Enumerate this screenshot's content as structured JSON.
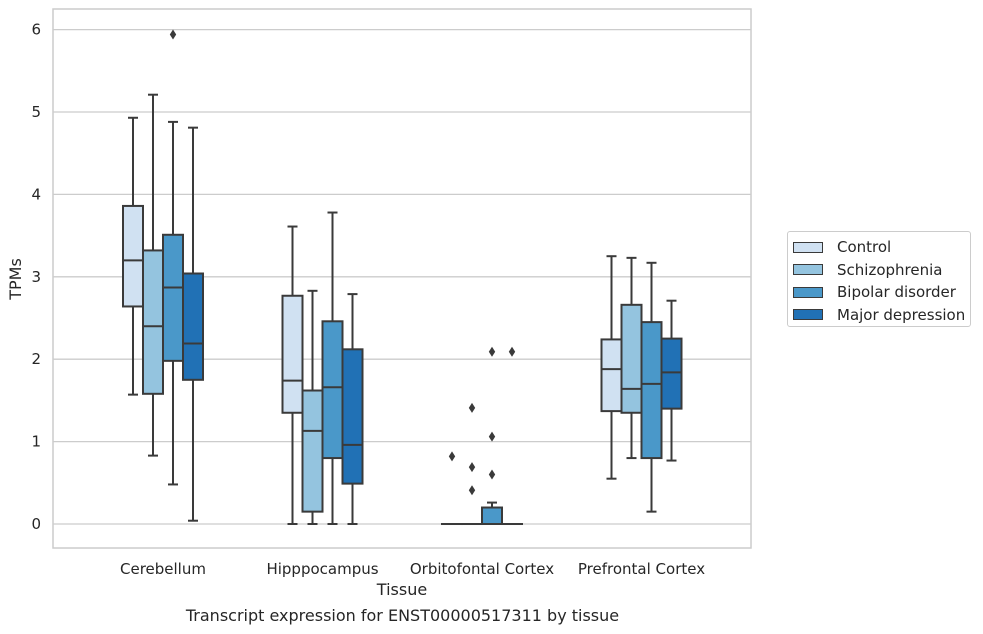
{
  "chart_data": {
    "type": "box",
    "title": "",
    "xlabel": "Tissue",
    "ylabel": "TPMs",
    "caption": "Transcript expression for ENST00000517311 by tissue",
    "ylim": [
      -0.28,
      6.25
    ],
    "yticks": [
      0,
      1,
      2,
      3,
      4,
      5,
      6
    ],
    "categories": [
      "Cerebellum",
      "Hipppocampus",
      "Orbitofontal Cortex",
      "Prefrontal Cortex"
    ],
    "grid": "horizontal",
    "legend_position": "right",
    "series": [
      {
        "name": "Control",
        "color": "#d0e1f2",
        "boxes": [
          {
            "whislo": 1.57,
            "q1": 2.64,
            "med": 3.2,
            "q3": 3.86,
            "whishi": 4.93,
            "fliers": []
          },
          {
            "whislo": 0.0,
            "q1": 1.35,
            "med": 1.74,
            "q3": 2.77,
            "whishi": 3.61,
            "fliers": []
          },
          {
            "whislo": 0.0,
            "q1": 0.0,
            "med": 0.0,
            "q3": 0.0,
            "whishi": 0.0,
            "fliers": [
              0.82
            ]
          },
          {
            "whislo": 0.55,
            "q1": 1.37,
            "med": 1.88,
            "q3": 2.24,
            "whishi": 3.25,
            "fliers": []
          }
        ]
      },
      {
        "name": "Schizophrenia",
        "color": "#94c4df",
        "boxes": [
          {
            "whislo": 0.83,
            "q1": 1.58,
            "med": 2.4,
            "q3": 3.32,
            "whishi": 5.21,
            "fliers": []
          },
          {
            "whislo": 0.0,
            "q1": 0.15,
            "med": 1.13,
            "q3": 1.62,
            "whishi": 2.83,
            "fliers": []
          },
          {
            "whislo": 0.0,
            "q1": 0.0,
            "med": 0.0,
            "q3": 0.0,
            "whishi": 0.0,
            "fliers": [
              0.41,
              0.69,
              1.41
            ]
          },
          {
            "whislo": 0.8,
            "q1": 1.35,
            "med": 1.64,
            "q3": 2.66,
            "whishi": 3.23,
            "fliers": []
          }
        ]
      },
      {
        "name": "Bipolar disorder",
        "color": "#4a98c9",
        "boxes": [
          {
            "whislo": 0.48,
            "q1": 1.98,
            "med": 2.87,
            "q3": 3.51,
            "whishi": 4.88,
            "fliers": [
              5.94
            ]
          },
          {
            "whislo": 0.0,
            "q1": 0.8,
            "med": 1.66,
            "q3": 2.46,
            "whishi": 3.78,
            "fliers": []
          },
          {
            "whislo": 0.0,
            "q1": 0.0,
            "med": 0.0,
            "q3": 0.2,
            "whishi": 0.26,
            "fliers": [
              0.6,
              1.06,
              2.09
            ]
          },
          {
            "whislo": 0.15,
            "q1": 0.8,
            "med": 1.7,
            "q3": 2.45,
            "whishi": 3.17,
            "fliers": []
          }
        ]
      },
      {
        "name": "Major depression",
        "color": "#2171b5",
        "boxes": [
          {
            "whislo": 0.04,
            "q1": 1.75,
            "med": 2.19,
            "q3": 3.04,
            "whishi": 4.81,
            "fliers": []
          },
          {
            "whislo": 0.0,
            "q1": 0.49,
            "med": 0.96,
            "q3": 2.12,
            "whishi": 2.79,
            "fliers": []
          },
          {
            "whislo": 0.0,
            "q1": 0.0,
            "med": 0.0,
            "q3": 0.0,
            "whishi": 0.0,
            "fliers": [
              2.09
            ]
          },
          {
            "whislo": 0.77,
            "q1": 1.4,
            "med": 1.84,
            "q3": 2.25,
            "whishi": 2.71,
            "fliers": []
          }
        ]
      }
    ]
  }
}
